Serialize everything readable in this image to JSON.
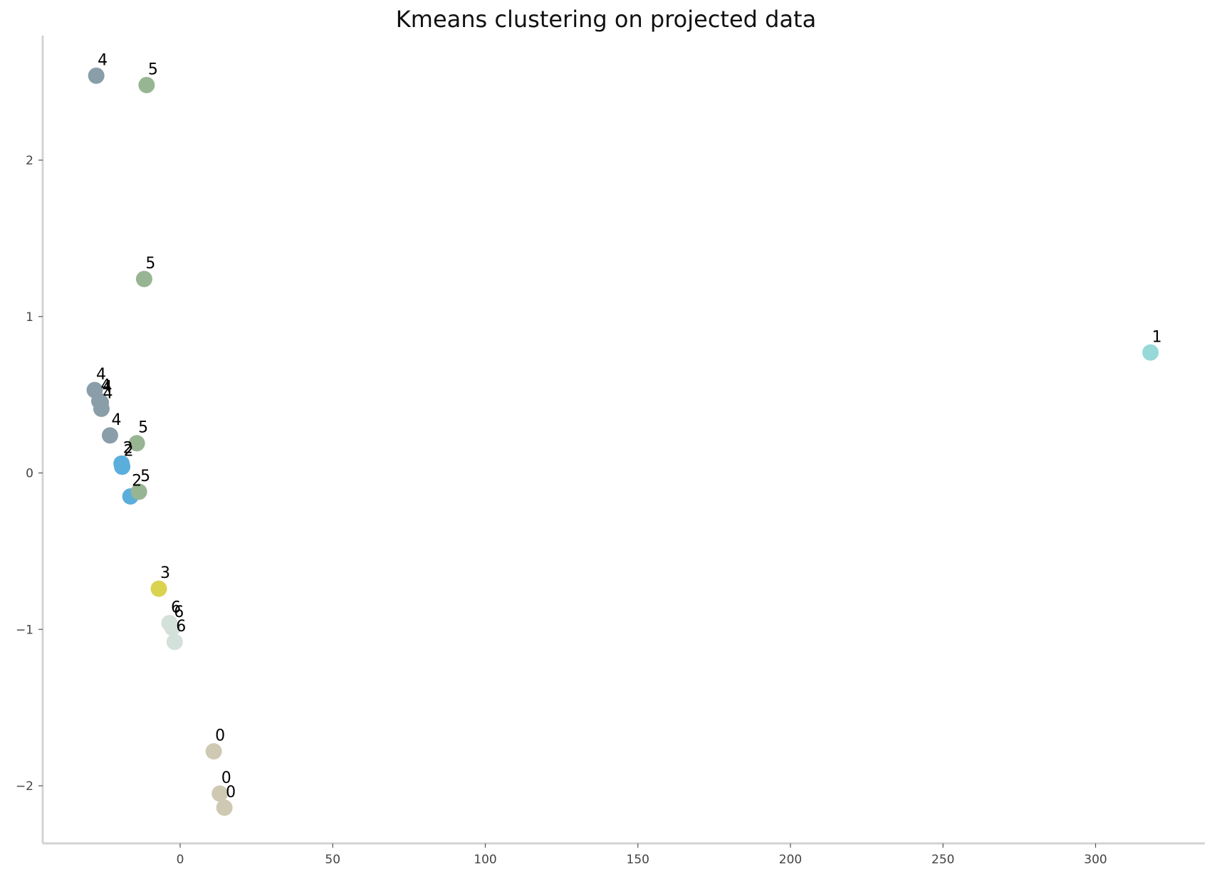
{
  "chart_data": {
    "type": "scatter",
    "title": "Kmeans clustering on projected data",
    "xlabel": "",
    "ylabel": "",
    "xlim": [
      -45,
      335
    ],
    "ylim": [
      -2.38,
      2.8
    ],
    "grid": false,
    "x_ticks": [
      0,
      50,
      100,
      150,
      200,
      250,
      300
    ],
    "y_ticks": [
      -2,
      -1,
      0,
      1,
      2
    ],
    "y_tick_labels": [
      "−2",
      "−1",
      "0",
      "1",
      "2"
    ],
    "cluster_colors": {
      "0": "#cfc9b3",
      "1": "#97d8d8",
      "2": "#5aaedb",
      "3": "#dad350",
      "4": "#8a9ea9",
      "5": "#97b592",
      "6": "#d4e0da"
    },
    "points": [
      {
        "x": -27.5,
        "y": 2.54,
        "label": "4"
      },
      {
        "x": -11,
        "y": 2.48,
        "label": "5"
      },
      {
        "x": -11.8,
        "y": 1.24,
        "label": "5"
      },
      {
        "x": 318,
        "y": 0.77,
        "label": "1"
      },
      {
        "x": -28,
        "y": 0.53,
        "label": "4"
      },
      {
        "x": -26.5,
        "y": 0.46,
        "label": "4"
      },
      {
        "x": -26,
        "y": 0.45,
        "label": "4"
      },
      {
        "x": -25.8,
        "y": 0.41,
        "label": "4"
      },
      {
        "x": -23,
        "y": 0.24,
        "label": "4"
      },
      {
        "x": -14.2,
        "y": 0.19,
        "label": "5"
      },
      {
        "x": -19.2,
        "y": 0.06,
        "label": "2"
      },
      {
        "x": -19,
        "y": 0.04,
        "label": "2"
      },
      {
        "x": -16.3,
        "y": -0.15,
        "label": "2"
      },
      {
        "x": -13.5,
        "y": -0.12,
        "label": "5"
      },
      {
        "x": -7,
        "y": -0.74,
        "label": "3"
      },
      {
        "x": -3.5,
        "y": -0.96,
        "label": "6"
      },
      {
        "x": -2.5,
        "y": -0.99,
        "label": "6"
      },
      {
        "x": -1.8,
        "y": -1.08,
        "label": "6"
      },
      {
        "x": 11,
        "y": -1.78,
        "label": "0"
      },
      {
        "x": 13,
        "y": -2.05,
        "label": "0"
      },
      {
        "x": 14.5,
        "y": -2.14,
        "label": "0"
      }
    ]
  }
}
